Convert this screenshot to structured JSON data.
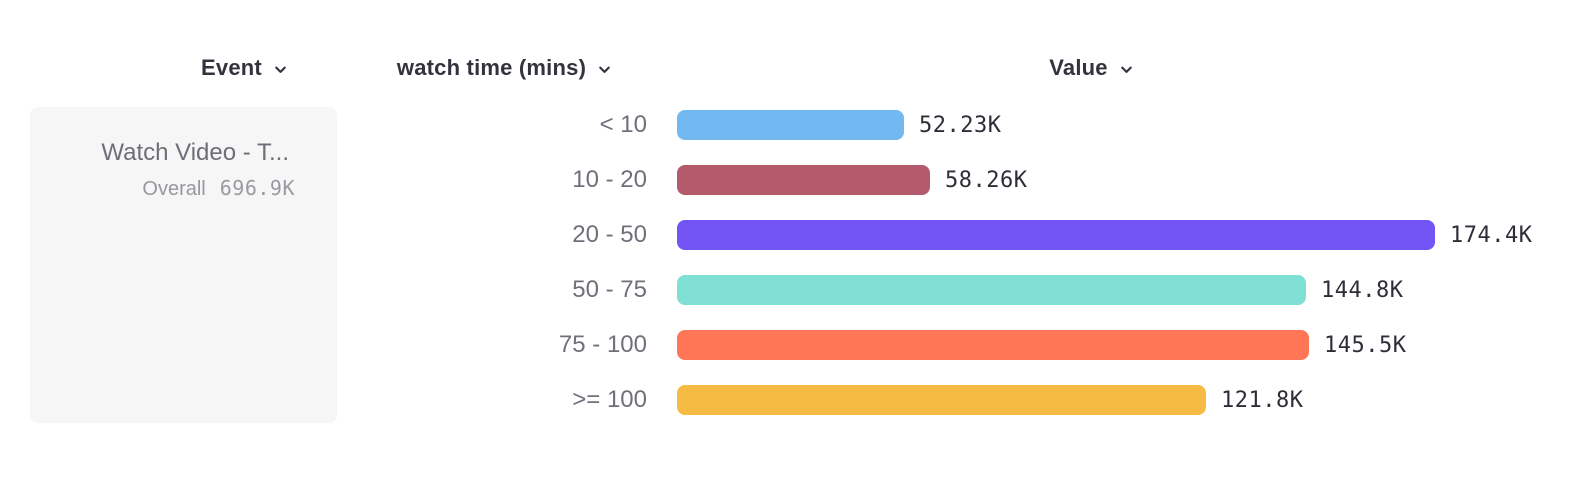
{
  "header": {
    "columns": [
      {
        "label": "Event"
      },
      {
        "label": "watch time (mins)"
      },
      {
        "label": "Value"
      }
    ]
  },
  "event_card": {
    "name": "Watch Video - T...",
    "overall_label": "Overall",
    "overall_value": "696.9K"
  },
  "chart_data": {
    "type": "bar",
    "orientation": "horizontal",
    "title": "",
    "xlabel": "Value",
    "ylabel": "watch time (mins)",
    "categories": [
      "< 10",
      "10 - 20",
      "20 - 50",
      "50 - 75",
      "75 - 100",
      ">= 100"
    ],
    "values": [
      52230,
      58260,
      174400,
      144800,
      145500,
      121800
    ],
    "value_labels": [
      "52.23K",
      "58.26K",
      "174.4K",
      "144.8K",
      "145.5K",
      "121.8K"
    ],
    "bar_colors": [
      "#71b9f0",
      "#b35a6d",
      "#7355f5",
      "#7fe0d3",
      "#ff7656",
      "#f6bb42"
    ],
    "xlim": [
      0,
      174400
    ],
    "grid": false,
    "legend": false
  },
  "colors": {
    "header_text": "#33333d",
    "category_text": "#70707a",
    "value_text": "#2e2e38",
    "card_bg": "#f6f6f7",
    "card_text": "#6e6e78",
    "card_muted": "#9a9aa2"
  }
}
